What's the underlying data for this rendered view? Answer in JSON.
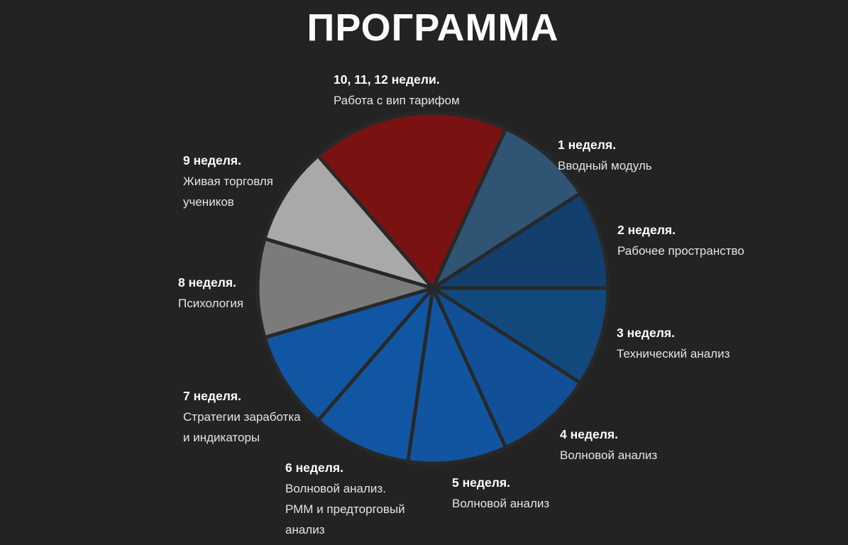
{
  "page": {
    "title": "ПРОГРАММА",
    "background_color": "#232323"
  },
  "chart_data": {
    "type": "pie",
    "title": "ПРОГРАММА",
    "legend_position": "around",
    "units_total": 11,
    "gap_color": "#282828",
    "gap_width": 5,
    "slices": [
      {
        "label": "1 неделя.",
        "description": "Вводный модуль",
        "value": 1,
        "color": "#2F5474",
        "start_deg": 32.727,
        "end_deg": 65.455
      },
      {
        "label": "2 неделя.",
        "description": "Рабочее пространство",
        "value": 1,
        "color": "#123F6B",
        "start_deg": 0,
        "end_deg": 32.727
      },
      {
        "label": "3 неделя.",
        "description": "Технический анализ",
        "value": 1,
        "color": "#12497D",
        "start_deg": -32.727,
        "end_deg": 0
      },
      {
        "label": "4 неделя.",
        "description": "Волновой анализ",
        "value": 1,
        "color": "#114F97",
        "start_deg": -65.455,
        "end_deg": -32.727
      },
      {
        "label": "5 неделя.",
        "description": "Волновой анализ",
        "value": 1,
        "color": "#1155A1",
        "start_deg": -98.182,
        "end_deg": -65.455
      },
      {
        "label": "6 неделя.",
        "description": "Волновой анализ.\nРММ и предторговый\nанализ",
        "value": 1,
        "color": "#1156A2",
        "start_deg": -130.909,
        "end_deg": -98.182
      },
      {
        "label": "7 неделя.",
        "description": "Стратегии заработка\nи индикаторы",
        "value": 1,
        "color": "#1156A2",
        "start_deg": -163.636,
        "end_deg": -130.909
      },
      {
        "label": "8 неделя.",
        "description": "Психология",
        "value": 1,
        "color": "#7B7B7B",
        "start_deg": -196.364,
        "end_deg": -163.636
      },
      {
        "label": "9 неделя.",
        "description": "Живая торговля\nучеников",
        "value": 1,
        "color": "#A9A9A9",
        "start_deg": 130.909,
        "end_deg": 163.636
      },
      {
        "label": "10, 11, 12 недели.",
        "description": "Работа с вип тарифом",
        "value": 2,
        "color": "#7A1212",
        "start_deg": 65.455,
        "end_deg": 130.909
      }
    ]
  }
}
